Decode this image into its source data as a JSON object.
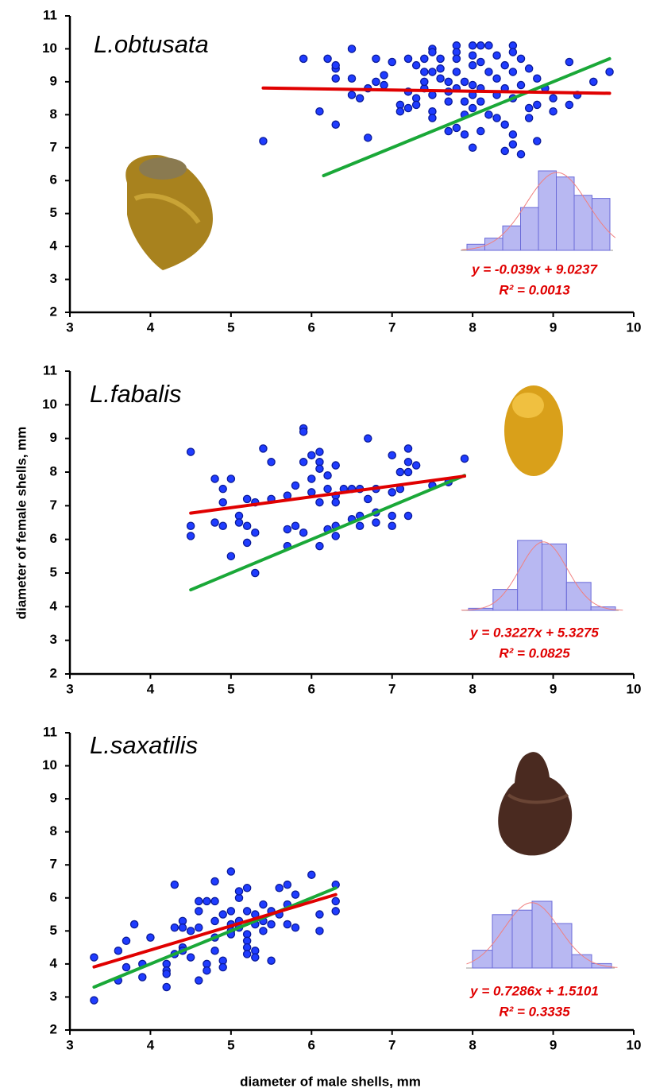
{
  "chart_data": [
    {
      "type": "scatter",
      "label": "L.obtusata",
      "color": "#1f3cff",
      "x": [
        5.4,
        5.9,
        6.1,
        6.2,
        6.3,
        6.3,
        6.3,
        6.3,
        6.5,
        6.5,
        6.5,
        6.6,
        6.7,
        6.7,
        6.8,
        6.8,
        6.9,
        6.9,
        7.0,
        7.1,
        7.1,
        7.2,
        7.2,
        7.2,
        7.3,
        7.3,
        7.3,
        7.4,
        7.4,
        7.4,
        7.4,
        7.5,
        7.5,
        7.5,
        7.5,
        7.5,
        7.5,
        7.6,
        7.6,
        7.6,
        7.7,
        7.7,
        7.7,
        7.7,
        7.8,
        7.8,
        7.8,
        7.8,
        7.8,
        7.8,
        7.9,
        7.9,
        7.9,
        7.9,
        8.0,
        8.0,
        8.0,
        8.0,
        8.0,
        8.0,
        8.0,
        8.1,
        8.1,
        8.1,
        8.1,
        8.1,
        8.2,
        8.2,
        8.2,
        8.3,
        8.3,
        8.3,
        8.3,
        8.4,
        8.4,
        8.4,
        8.4,
        8.5,
        8.5,
        8.5,
        8.5,
        8.5,
        8.5,
        8.6,
        8.6,
        8.6,
        8.7,
        8.7,
        8.7,
        8.8,
        8.8,
        8.8,
        8.9,
        9.0,
        9.0,
        9.2,
        9.2,
        9.3,
        9.5,
        9.7
      ],
      "y": [
        7.2,
        9.7,
        8.1,
        9.7,
        9.1,
        9.4,
        9.5,
        7.7,
        8.6,
        10.0,
        9.1,
        8.5,
        7.3,
        8.8,
        9.0,
        9.7,
        9.2,
        8.9,
        9.6,
        8.3,
        8.1,
        9.7,
        8.7,
        8.2,
        9.5,
        8.5,
        8.3,
        9.7,
        9.3,
        8.8,
        9.0,
        10.0,
        9.9,
        9.3,
        8.6,
        8.1,
        7.9,
        9.7,
        9.4,
        9.1,
        9.0,
        8.7,
        8.4,
        7.5,
        10.1,
        9.9,
        9.7,
        9.3,
        8.8,
        7.6,
        9.0,
        8.4,
        8.0,
        7.4,
        10.1,
        9.8,
        9.5,
        8.9,
        8.6,
        8.2,
        7.0,
        10.1,
        9.6,
        8.8,
        8.4,
        7.5,
        10.1,
        9.3,
        8.0,
        9.8,
        9.1,
        8.6,
        7.9,
        9.5,
        8.8,
        7.7,
        6.9,
        10.1,
        9.9,
        9.3,
        8.5,
        7.4,
        7.1,
        9.7,
        8.9,
        6.8,
        9.4,
        8.2,
        7.9,
        9.1,
        8.3,
        7.2,
        8.8,
        8.5,
        8.1,
        9.6,
        8.3,
        8.6,
        9.0,
        9.3
      ],
      "lines": [
        {
          "color": "#e00000",
          "x": [
            5.4,
            9.7
          ],
          "values": [
            8.81,
            8.65
          ]
        },
        {
          "color": "#1aa838",
          "x": [
            6.15,
            9.7
          ],
          "values": [
            6.15,
            9.7
          ]
        }
      ],
      "equation": "y = -0.039x + 9.0237",
      "r2": "R² = 0.0013",
      "inset_histogram": {
        "values": [
          1,
          2,
          4,
          7,
          13,
          12,
          9,
          8.5
        ],
        "color": "#b8b8f2"
      },
      "xlim": [
        3,
        10
      ],
      "ylim": [
        2,
        11
      ],
      "xticks": [
        3,
        4,
        5,
        6,
        7,
        8,
        9,
        10
      ],
      "yticks": [
        2,
        3,
        4,
        5,
        6,
        7,
        8,
        9,
        10,
        11
      ]
    },
    {
      "type": "scatter",
      "label": "L.fabalis",
      "color": "#1f3cff",
      "y_label": "diameter of female shells, mm",
      "x": [
        4.5,
        4.5,
        4.5,
        4.8,
        4.8,
        4.9,
        4.9,
        4.9,
        5.0,
        5.0,
        5.1,
        5.1,
        5.2,
        5.2,
        5.2,
        5.3,
        5.3,
        5.3,
        5.4,
        5.5,
        5.5,
        5.7,
        5.7,
        5.7,
        5.8,
        5.8,
        5.9,
        5.9,
        5.9,
        5.9,
        6.0,
        6.0,
        6.0,
        6.1,
        6.1,
        6.1,
        6.1,
        6.1,
        6.2,
        6.2,
        6.2,
        6.3,
        6.3,
        6.3,
        6.3,
        6.3,
        6.4,
        6.5,
        6.5,
        6.6,
        6.6,
        6.6,
        6.7,
        6.7,
        6.8,
        6.8,
        6.8,
        7.0,
        7.0,
        7.0,
        7.0,
        7.1,
        7.1,
        7.2,
        7.2,
        7.2,
        7.2,
        7.3,
        7.5,
        7.7,
        7.9
      ],
      "y": [
        8.6,
        6.4,
        6.1,
        7.8,
        6.5,
        7.5,
        7.1,
        6.4,
        7.8,
        5.5,
        6.7,
        6.5,
        7.2,
        6.4,
        5.9,
        7.1,
        6.2,
        5.0,
        8.7,
        8.3,
        7.2,
        7.3,
        6.3,
        5.8,
        7.6,
        6.4,
        9.3,
        9.2,
        8.3,
        6.2,
        8.5,
        7.8,
        7.4,
        8.6,
        8.3,
        8.1,
        7.1,
        5.8,
        7.9,
        7.5,
        6.3,
        8.2,
        7.3,
        7.1,
        6.4,
        6.1,
        7.5,
        7.5,
        6.6,
        7.5,
        6.7,
        6.4,
        9.0,
        7.2,
        7.5,
        6.8,
        6.5,
        8.5,
        7.4,
        6.7,
        6.4,
        8.0,
        7.5,
        8.7,
        8.3,
        8.0,
        6.7,
        8.2,
        7.6,
        7.7,
        8.4
      ],
      "lines": [
        {
          "color": "#e00000",
          "x": [
            4.5,
            7.9
          ],
          "values": [
            6.78,
            7.88
          ]
        },
        {
          "color": "#1aa838",
          "x": [
            4.5,
            7.9
          ],
          "values": [
            4.5,
            7.9
          ]
        }
      ],
      "equation": "y = 0.3227x + 5.3275",
      "r2": "R² = 0.0825",
      "inset_histogram": {
        "values": [
          0.3,
          3,
          10,
          9.5,
          4,
          0.5
        ],
        "color": "#b8b8f2"
      },
      "xlim": [
        3,
        10
      ],
      "ylim": [
        2,
        11
      ],
      "xticks": [
        3,
        4,
        5,
        6,
        7,
        8,
        9,
        10
      ],
      "yticks": [
        2,
        3,
        4,
        5,
        6,
        7,
        8,
        9,
        10,
        11
      ]
    },
    {
      "type": "scatter",
      "label": "L.saxatilis",
      "color": "#1f3cff",
      "x_label": "diameter of male shells, mm",
      "x": [
        3.3,
        3.3,
        3.6,
        3.6,
        3.7,
        3.7,
        3.8,
        3.9,
        3.9,
        4.0,
        4.2,
        4.2,
        4.2,
        4.2,
        4.3,
        4.3,
        4.3,
        4.4,
        4.4,
        4.4,
        4.4,
        4.5,
        4.5,
        4.6,
        4.6,
        4.6,
        4.6,
        4.7,
        4.7,
        4.7,
        4.8,
        4.8,
        4.8,
        4.8,
        4.8,
        4.9,
        4.9,
        4.9,
        5.0,
        5.0,
        5.0,
        5.0,
        5.0,
        5.1,
        5.1,
        5.1,
        5.1,
        5.2,
        5.2,
        5.2,
        5.2,
        5.2,
        5.2,
        5.3,
        5.3,
        5.3,
        5.3,
        5.4,
        5.4,
        5.4,
        5.5,
        5.5,
        5.5,
        5.6,
        5.6,
        5.7,
        5.7,
        5.7,
        5.8,
        5.8,
        6.0,
        6.1,
        6.1,
        6.3,
        6.3,
        6.3
      ],
      "y": [
        4.2,
        2.9,
        4.4,
        3.5,
        4.7,
        3.9,
        5.2,
        4.0,
        3.6,
        4.8,
        4.0,
        3.8,
        3.7,
        3.3,
        6.4,
        5.1,
        4.3,
        5.3,
        5.1,
        4.5,
        4.4,
        5.0,
        4.2,
        5.9,
        5.6,
        5.1,
        3.5,
        5.9,
        4.0,
        3.8,
        6.5,
        5.9,
        5.3,
        4.8,
        4.4,
        5.5,
        4.1,
        3.9,
        6.8,
        5.6,
        5.2,
        5.0,
        4.9,
        5.3,
        5.1,
        6.0,
        6.2,
        6.3,
        5.6,
        4.9,
        4.7,
        4.5,
        4.3,
        5.5,
        5.2,
        4.4,
        4.2,
        5.8,
        5.3,
        5.0,
        5.6,
        5.2,
        4.1,
        6.3,
        5.5,
        6.4,
        5.8,
        5.2,
        6.1,
        5.1,
        6.7,
        5.0,
        5.5,
        6.4,
        5.9,
        5.6
      ],
      "lines": [
        {
          "color": "#e00000",
          "x": [
            3.3,
            6.3
          ],
          "values": [
            3.91,
            6.1
          ]
        },
        {
          "color": "#1aa838",
          "x": [
            3.3,
            6.3
          ],
          "values": [
            3.3,
            6.3
          ]
        }
      ],
      "equation": "y = 0.7286x + 1.5101",
      "r2": "R² = 0.3335",
      "inset_histogram": {
        "values": [
          2,
          6,
          6.5,
          7.5,
          5,
          1.5,
          0.5
        ],
        "color": "#b8b8f2"
      },
      "xlim": [
        3,
        10
      ],
      "ylim": [
        2,
        11
      ],
      "xticks": [
        3,
        4,
        5,
        6,
        7,
        8,
        9,
        10
      ],
      "yticks": [
        2,
        3,
        4,
        5,
        6,
        7,
        8,
        9,
        10,
        11
      ]
    }
  ]
}
